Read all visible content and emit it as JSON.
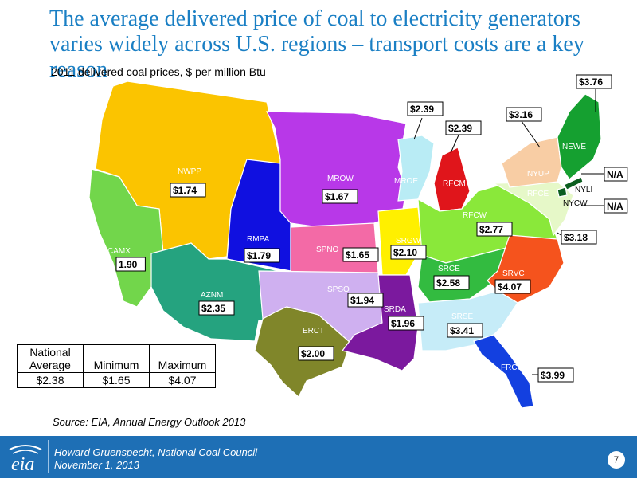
{
  "title": "The average delivered price of coal to electricity generators varies widely across U.S. regions – transport costs are a key reason",
  "subtitle": "2011 delivered coal prices, $ per million Btu",
  "regions": [
    {
      "code": "NWPP",
      "price": "$1.74",
      "color": "#fbc400"
    },
    {
      "code": "CAMX",
      "price": "1.90",
      "color": "#72d64b"
    },
    {
      "code": "RMPA",
      "price": "$1.79",
      "color": "#1010e0"
    },
    {
      "code": "AZNM",
      "price": "$2.35",
      "color": "#25a37f"
    },
    {
      "code": "MROW",
      "price": "$1.67",
      "color": "#b838e8"
    },
    {
      "code": "MROE",
      "price": "$2.39",
      "color": "#b9ecf5"
    },
    {
      "code": "SPNO",
      "price": "$1.65",
      "color": "#f36aa6"
    },
    {
      "code": "SPSO",
      "price": "$1.94",
      "color": "#cfb0f0"
    },
    {
      "code": "ERCT",
      "price": "$2.00",
      "color": "#80862a"
    },
    {
      "code": "SRGW",
      "price": "$2.10",
      "color": "#fff000"
    },
    {
      "code": "SRDA",
      "price": "$1.96",
      "color": "#7b199e"
    },
    {
      "code": "RFCM",
      "price": "$2.39",
      "color": "#e0151b"
    },
    {
      "code": "RFCW",
      "price": "$2.77",
      "color": "#8ae83a"
    },
    {
      "code": "RFCE",
      "price": "$3.18",
      "color": "#e6f8c8"
    },
    {
      "code": "SRCE",
      "price": "$2.58",
      "color": "#33bb40"
    },
    {
      "code": "SRVC",
      "price": "$4.07",
      "color": "#f5531d"
    },
    {
      "code": "SRSE",
      "price": "$3.41",
      "color": "#c6ecf8"
    },
    {
      "code": "FRCC",
      "price": "$3.99",
      "color": "#1340e0"
    },
    {
      "code": "NYUP",
      "price": "$3.16",
      "color": "#f8cda4"
    },
    {
      "code": "NEWE",
      "price": "$3.76",
      "color": "#15a030"
    },
    {
      "code": "NYLI",
      "price": "N/A",
      "color": "#0b5e1f"
    },
    {
      "code": "NYCW",
      "price": "N/A",
      "color": "#0b5e1f"
    }
  ],
  "table": {
    "headers": [
      "National Average",
      "Minimum",
      "Maximum"
    ],
    "values": [
      "$2.38",
      "$1.65",
      "$4.07"
    ]
  },
  "source": "Source:  EIA, Annual Energy Outlook 2013",
  "footer": {
    "logo": "eia",
    "presenter": "Howard Gruenspecht, National Coal Council",
    "date": "November 1, 2013",
    "page": "7"
  }
}
